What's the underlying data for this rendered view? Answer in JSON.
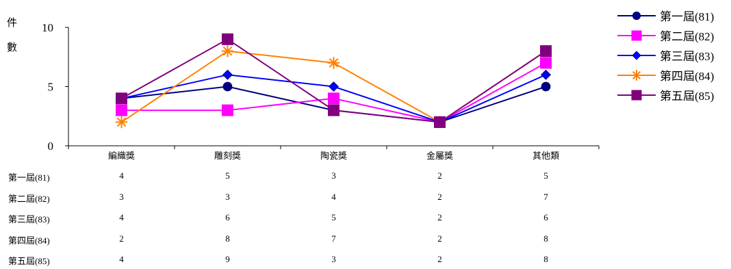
{
  "chart_data": {
    "type": "line",
    "title": "",
    "ylabel": "件數",
    "ylabel_chars": [
      "件",
      "數"
    ],
    "xlabel": "",
    "categories": [
      "編織獎",
      "雕刻獎",
      "陶瓷獎",
      "金屬獎",
      "其他類"
    ],
    "ylim": [
      0,
      10
    ],
    "yticks": [
      0,
      5,
      10
    ],
    "grid": false,
    "legend": "right",
    "series": [
      {
        "name": "第一屆(81)",
        "values": [
          4,
          5,
          3,
          2,
          5
        ],
        "color": "#000080",
        "marker": "circle"
      },
      {
        "name": "第二屆(82)",
        "values": [
          3,
          3,
          4,
          2,
          7
        ],
        "color": "#ff00ff",
        "marker": "square"
      },
      {
        "name": "第三屆(83)",
        "values": [
          4,
          6,
          5,
          2,
          6
        ],
        "color": "#0000ff",
        "marker": "diamond"
      },
      {
        "name": "第四屆(84)",
        "values": [
          2,
          8,
          7,
          2,
          8
        ],
        "color": "#ff8000",
        "marker": "asterisk"
      },
      {
        "name": "第五屆(85)",
        "values": [
          4,
          9,
          3,
          2,
          8
        ],
        "color": "#800080",
        "marker": "square"
      }
    ],
    "data_table": true
  }
}
